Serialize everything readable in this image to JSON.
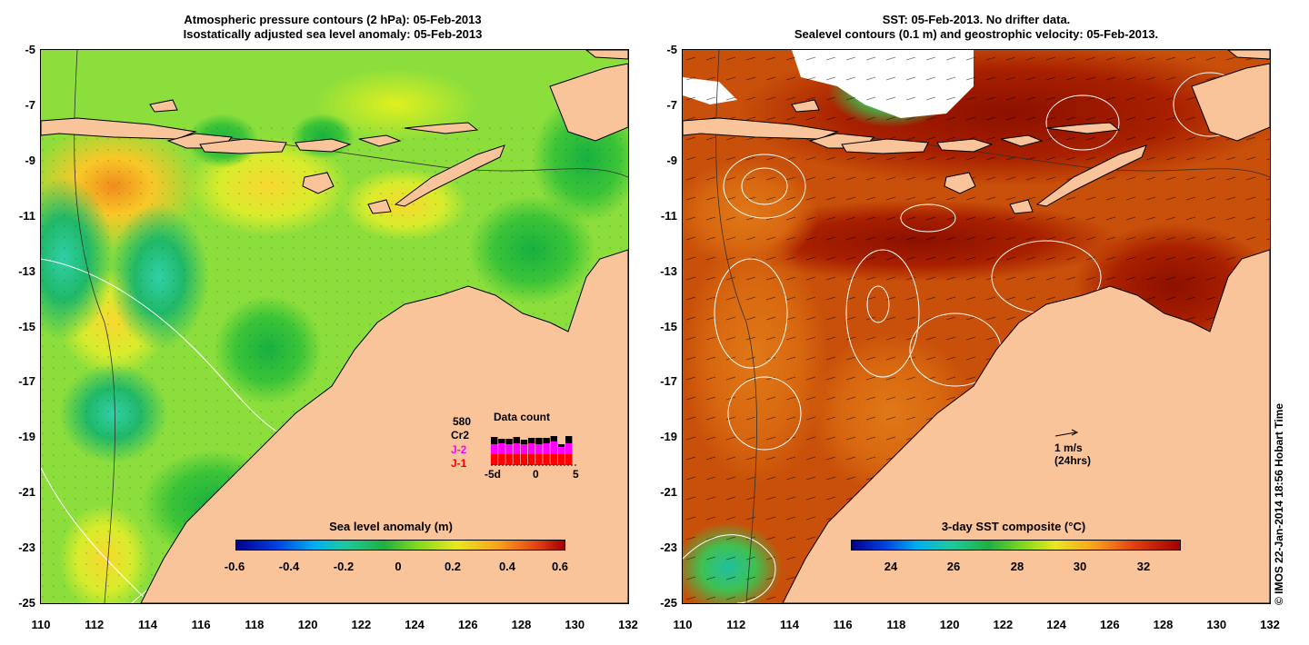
{
  "left_panel": {
    "title_line1": "Atmospheric pressure contours (2 hPa): 05-Feb-2013",
    "title_line2": "Isostatically adjusted sea level anomaly: 05-Feb-2013",
    "colorbar": {
      "title": "Sea level anomaly (m)",
      "ticks": [
        "-0.6",
        "-0.4",
        "-0.2",
        "0",
        "0.2",
        "0.4",
        "0.6"
      ],
      "range": [
        -0.6,
        0.6
      ]
    },
    "data_count": {
      "title": "Data count",
      "count": "580",
      "label_cr2": "Cr2",
      "label_j2": "J-2",
      "label_j1": "J-1",
      "axis_labels": [
        "-5d",
        "0",
        "5"
      ],
      "colors": {
        "cr2": "#000000",
        "j2": "#ff00ff",
        "j1": "#ff0000"
      }
    }
  },
  "right_panel": {
    "title_line1": "SST: 05-Feb-2013. No drifter data.",
    "title_line2": "Sealevel contours (0.1 m) and geostrophic velocity: 05-Feb-2013.",
    "colorbar": {
      "title": "3-day SST composite (°C)",
      "ticks": [
        "24",
        "26",
        "28",
        "30",
        "32"
      ],
      "range": [
        22.8,
        33.2
      ]
    },
    "scale": {
      "label": "1 m/s",
      "sublabel": "(24hrs)"
    }
  },
  "axes": {
    "lat_ticks": [
      "-5",
      "-7",
      "-9",
      "-11",
      "-13",
      "-15",
      "-17",
      "-19",
      "-21",
      "-23",
      "-25"
    ],
    "lon_ticks": [
      "110",
      "112",
      "114",
      "116",
      "118",
      "120",
      "122",
      "124",
      "126",
      "128",
      "130",
      "132"
    ],
    "lat_range": [
      -25,
      -5
    ],
    "lon_range": [
      110,
      132
    ]
  },
  "credit": "© IMOS 22-Jan-2014 18:56 Hobart Time",
  "colors": {
    "land": "#f9c49a",
    "sla_mid": "#8cde3c",
    "sst_mid": "#c8500a"
  }
}
